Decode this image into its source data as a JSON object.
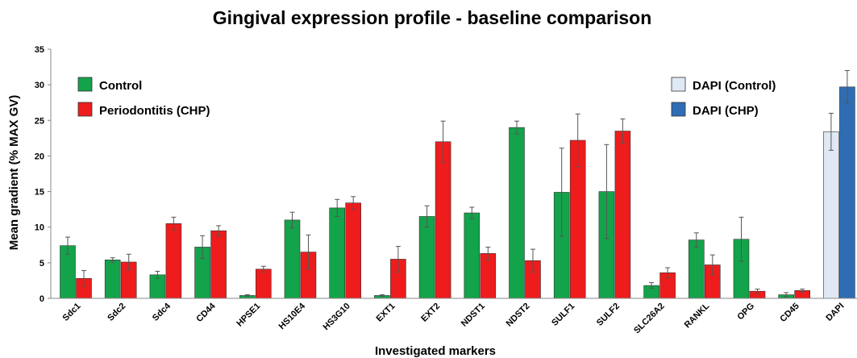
{
  "chart_data": {
    "type": "bar",
    "title": "Gingival expression profile - baseline comparison",
    "xlabel": "Investigated markers",
    "ylabel": "Mean gradient (% MAX GV)",
    "ylim": [
      0,
      35
    ],
    "yticks": [
      "0",
      "5",
      "10",
      "15",
      "20",
      "25",
      "30",
      "35"
    ],
    "grid": false,
    "categories": [
      "Sdc1",
      "Sdc2",
      "Sdc4",
      "CD44",
      "HPSE1",
      "HS10E4",
      "HS3G10",
      "EXT1",
      "EXT2",
      "NDST1",
      "NDST2",
      "SULF1",
      "SULF2",
      "SLC26A2",
      "RANKL",
      "OPG",
      "CD45",
      "DAPI"
    ],
    "series": [
      {
        "name": "Control",
        "color": "#13a34a",
        "values": [
          7.4,
          5.4,
          3.3,
          7.2,
          0.4,
          11.0,
          12.7,
          0.4,
          11.5,
          12.0,
          24.0,
          14.9,
          15.0,
          1.8,
          8.2,
          8.3,
          0.5,
          null
        ],
        "errors": [
          1.2,
          0.3,
          0.5,
          1.6,
          0.1,
          1.1,
          1.2,
          0.1,
          1.5,
          0.8,
          0.9,
          6.2,
          6.6,
          0.4,
          1.0,
          3.1,
          0.3,
          null
        ]
      },
      {
        "name": "Periodontitis (CHP)",
        "color": "#ee1c1c",
        "values": [
          2.8,
          5.1,
          10.5,
          9.5,
          4.1,
          6.5,
          13.4,
          5.5,
          22.0,
          6.3,
          5.3,
          22.2,
          23.5,
          3.6,
          4.7,
          1.0,
          1.1,
          null
        ],
        "errors": [
          1.1,
          1.1,
          0.9,
          0.7,
          0.4,
          2.4,
          0.9,
          1.8,
          2.9,
          0.9,
          1.6,
          3.7,
          1.7,
          0.7,
          1.4,
          0.3,
          0.2,
          null
        ]
      },
      {
        "name": "DAPI (Control)",
        "color": "#dfe8f3",
        "values": [
          null,
          null,
          null,
          null,
          null,
          null,
          null,
          null,
          null,
          null,
          null,
          null,
          null,
          null,
          null,
          null,
          null,
          23.4
        ],
        "errors": [
          null,
          null,
          null,
          null,
          null,
          null,
          null,
          null,
          null,
          null,
          null,
          null,
          null,
          null,
          null,
          null,
          null,
          2.6
        ]
      },
      {
        "name": "DAPI (CHP)",
        "color": "#2e6db4",
        "values": [
          null,
          null,
          null,
          null,
          null,
          null,
          null,
          null,
          null,
          null,
          null,
          null,
          null,
          null,
          null,
          null,
          null,
          29.7
        ],
        "errors": [
          null,
          null,
          null,
          null,
          null,
          null,
          null,
          null,
          null,
          null,
          null,
          null,
          null,
          null,
          null,
          null,
          null,
          2.3
        ]
      }
    ],
    "legend": [
      {
        "placement": "top-left",
        "items": [
          "Control",
          "Periodontitis (CHP)"
        ]
      },
      {
        "placement": "top-right",
        "items": [
          "DAPI (Control)",
          "DAPI (CHP)"
        ]
      }
    ]
  }
}
